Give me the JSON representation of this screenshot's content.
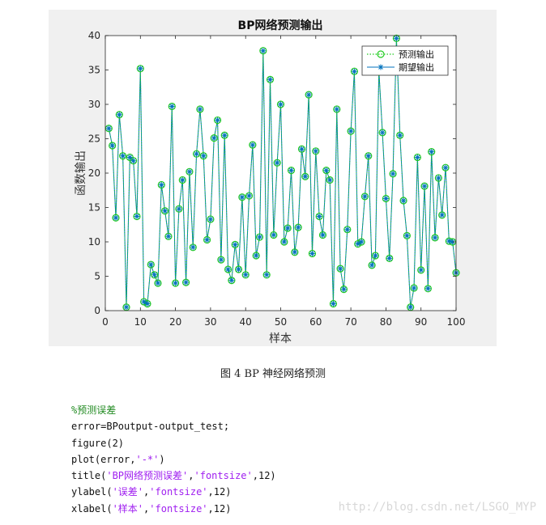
{
  "caption": "图 4 BP 神经网络预测",
  "code": {
    "comment": "%预测误差",
    "line1": "error=BPoutput-output_test;",
    "line2": "figure(2)",
    "line3_pre": "plot(error,",
    "line3_str": "'-*'",
    "line3_post": ")",
    "line4_pre": "title(",
    "line4_str1": "'BP网络预测误差'",
    "line4_mid": ",",
    "line4_str2": "'fontsize'",
    "line4_post": ",12)",
    "line5_pre": "ylabel(",
    "line5_str1": "'误差'",
    "line5_mid": ",",
    "line5_str2": "'fontsize'",
    "line5_post": ",12)",
    "line6_pre": "xlabel(",
    "line6_str1": "'样本'",
    "line6_mid": ",",
    "line6_str2": "'fontsize'",
    "line6_post": ",12)"
  },
  "watermark": "http://blog.csdn.net/LSGO_MYP",
  "colors": {
    "predicted": "#22cc22",
    "expected": "#0072bd",
    "figure_bg": "#f0f0f0"
  },
  "chart_data": {
    "type": "line",
    "title": "BP网络预测输出",
    "xlabel": "样本",
    "ylabel": "函数输出",
    "xlim": [
      0,
      100
    ],
    "ylim": [
      0,
      40
    ],
    "xticks": [
      0,
      10,
      20,
      30,
      40,
      50,
      60,
      70,
      80,
      90,
      100
    ],
    "yticks": [
      0,
      5,
      10,
      15,
      20,
      25,
      30,
      35,
      40
    ],
    "legend_position": "top-right",
    "x": [
      1,
      2,
      3,
      4,
      5,
      6,
      7,
      8,
      9,
      10,
      11,
      12,
      13,
      14,
      15,
      16,
      17,
      18,
      19,
      20,
      21,
      22,
      23,
      24,
      25,
      26,
      27,
      28,
      29,
      30,
      31,
      32,
      33,
      34,
      35,
      36,
      37,
      38,
      39,
      40,
      41,
      42,
      43,
      44,
      45,
      46,
      47,
      48,
      49,
      50,
      51,
      52,
      53,
      54,
      55,
      56,
      57,
      58,
      59,
      60,
      61,
      62,
      63,
      64,
      65,
      66,
      67,
      68,
      69,
      70,
      71,
      72,
      73,
      74,
      75,
      76,
      77,
      78,
      79,
      80,
      81,
      82,
      83,
      84,
      85,
      86,
      87,
      88,
      89,
      90,
      91,
      92,
      93,
      94,
      95,
      96,
      97,
      98,
      99,
      100
    ],
    "series": [
      {
        "name": "预测输出",
        "style": "dotted-circle",
        "values": [
          26.5,
          24,
          13.5,
          28.5,
          22.5,
          0.5,
          22.3,
          21.8,
          13.7,
          35.2,
          1.3,
          1,
          6.7,
          5.2,
          4,
          18.3,
          14.5,
          10.8,
          29.7,
          4,
          14.8,
          19,
          4.1,
          20.2,
          9.2,
          22.8,
          29.3,
          22.5,
          10.3,
          13.3,
          25.1,
          27.7,
          7.4,
          25.5,
          6,
          4.4,
          9.6,
          6,
          16.5,
          5.2,
          16.7,
          24.1,
          8,
          10.7,
          37.8,
          5.2,
          33.6,
          11,
          21.5,
          30,
          10,
          12,
          20.4,
          8.5,
          12.1,
          23.5,
          19.5,
          31.4,
          8.3,
          23.2,
          13.7,
          11,
          20.4,
          19,
          1,
          29.3,
          6.1,
          3.1,
          11.8,
          26.1,
          34.8,
          9.7,
          10,
          16.6,
          22.5,
          6.6,
          8,
          34.9,
          25.9,
          16.3,
          7.6,
          19.9,
          39.6,
          25.5,
          16,
          10.9,
          0.5,
          3.3,
          22.3,
          5.9,
          18.1,
          3.2,
          23.1,
          10.6,
          19.3,
          13.9,
          20.8,
          10.1,
          10,
          5.5
        ]
      },
      {
        "name": "期望输出",
        "style": "solid-star",
        "values": [
          26.5,
          24,
          13.5,
          28.5,
          22.5,
          0.5,
          22.3,
          21.8,
          13.7,
          35.2,
          1.3,
          1,
          6.7,
          5.2,
          4,
          18.3,
          14.5,
          10.8,
          29.7,
          4,
          14.8,
          19,
          4.1,
          20.2,
          9.2,
          22.8,
          29.3,
          22.5,
          10.3,
          13.3,
          25.1,
          27.7,
          7.4,
          25.5,
          6,
          4.4,
          9.6,
          6,
          16.5,
          5.2,
          16.7,
          24.1,
          8,
          10.7,
          37.8,
          5.2,
          33.6,
          11,
          21.5,
          30,
          10,
          12,
          20.4,
          8.5,
          12.1,
          23.5,
          19.5,
          31.4,
          8.3,
          23.2,
          13.7,
          11,
          20.4,
          19,
          1,
          29.3,
          6.1,
          3.1,
          11.8,
          26.1,
          34.8,
          9.7,
          10,
          16.6,
          22.5,
          6.6,
          8,
          34.9,
          25.9,
          16.3,
          7.6,
          19.9,
          39.6,
          25.5,
          16,
          10.9,
          0.5,
          3.3,
          22.3,
          5.9,
          18.1,
          3.2,
          23.1,
          10.6,
          19.3,
          13.9,
          20.8,
          10.1,
          10,
          5.5
        ]
      }
    ]
  }
}
